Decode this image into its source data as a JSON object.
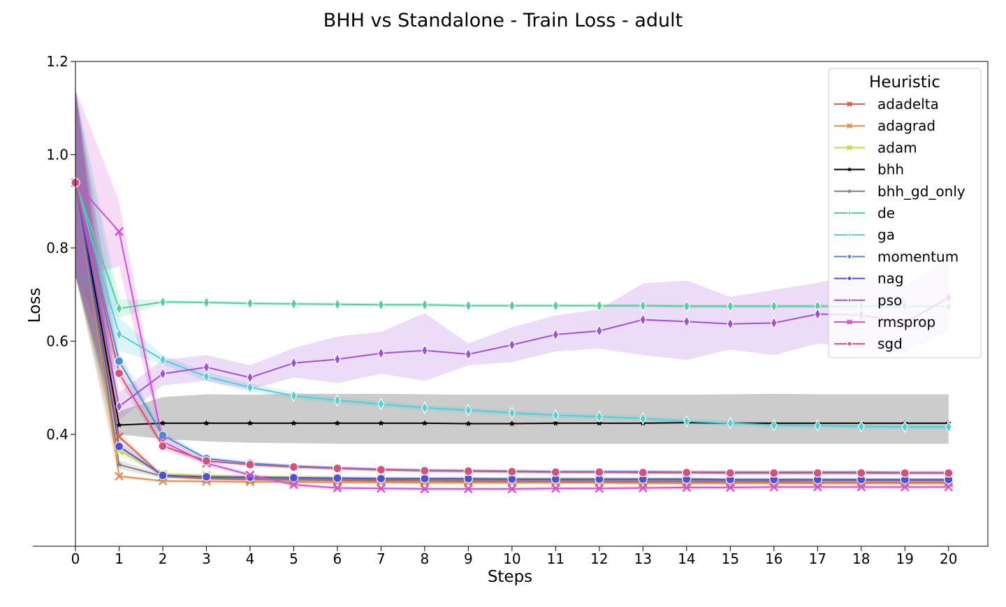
{
  "chart_data": {
    "type": "line",
    "title": "BHH vs Standalone - Train Loss - adult",
    "xlabel": "Steps",
    "ylabel": "Loss",
    "x": [
      0,
      1,
      2,
      3,
      4,
      5,
      6,
      7,
      8,
      9,
      10,
      11,
      12,
      13,
      14,
      15,
      16,
      17,
      18,
      19,
      20
    ],
    "x_ticks": [
      "0",
      "1",
      "2",
      "3",
      "4",
      "5",
      "6",
      "7",
      "8",
      "9",
      "10",
      "11",
      "12",
      "13",
      "14",
      "15",
      "16",
      "17",
      "18",
      "19",
      "20"
    ],
    "y_ticks": [
      "0.4",
      "0.6",
      "0.8",
      "1.0",
      "1.2"
    ],
    "y_tick_values": [
      0.4,
      0.6,
      0.8,
      1.0,
      1.2
    ],
    "xlim": [
      0,
      20.9
    ],
    "ylim": [
      0.16,
      1.2
    ],
    "grid": false,
    "legend": {
      "title": "Heuristic",
      "placement": "top-right"
    },
    "series": [
      {
        "name": "adadelta",
        "color": "#d65f4f",
        "marker": "x",
        "values": [
          0.94,
          0.395,
          0.31,
          0.305,
          0.303,
          0.302,
          0.301,
          0.3,
          0.3,
          0.299,
          0.299,
          0.299,
          0.298,
          0.298,
          0.298,
          0.298,
          0.298,
          0.297,
          0.297,
          0.297,
          0.297
        ],
        "band": {
          "lower": [
            0.74,
            0.385,
            0.306,
            0.301,
            0.299,
            0.298,
            0.297,
            0.296,
            0.296,
            0.295,
            0.295,
            0.295,
            0.294,
            0.294,
            0.294,
            0.294,
            0.294,
            0.293,
            0.293,
            0.293,
            0.293
          ],
          "upper": [
            1.14,
            0.405,
            0.314,
            0.309,
            0.307,
            0.306,
            0.305,
            0.304,
            0.304,
            0.303,
            0.303,
            0.303,
            0.302,
            0.302,
            0.302,
            0.302,
            0.302,
            0.301,
            0.301,
            0.301,
            0.301
          ]
        }
      },
      {
        "name": "adagrad",
        "color": "#e09050",
        "marker": "x",
        "values": [
          0.94,
          0.31,
          0.3,
          0.299,
          0.298,
          0.298,
          0.297,
          0.297,
          0.296,
          0.296,
          0.296,
          0.296,
          0.296,
          0.295,
          0.295,
          0.295,
          0.295,
          0.295,
          0.295,
          0.295,
          0.295
        ],
        "band": {
          "lower": [
            0.74,
            0.306,
            0.297,
            0.296,
            0.295,
            0.295,
            0.294,
            0.294,
            0.293,
            0.293,
            0.293,
            0.293,
            0.293,
            0.292,
            0.292,
            0.292,
            0.292,
            0.292,
            0.292,
            0.292,
            0.292
          ],
          "upper": [
            1.14,
            0.314,
            0.303,
            0.302,
            0.301,
            0.301,
            0.3,
            0.3,
            0.299,
            0.299,
            0.299,
            0.299,
            0.299,
            0.298,
            0.298,
            0.298,
            0.298,
            0.298,
            0.298,
            0.298,
            0.298
          ]
        }
      },
      {
        "name": "adam",
        "color": "#c8d84a",
        "marker": "x",
        "values": [
          0.94,
          0.365,
          0.315,
          0.312,
          0.31,
          0.308,
          0.307,
          0.306,
          0.305,
          0.305,
          0.304,
          0.304,
          0.304,
          0.303,
          0.303,
          0.303,
          0.303,
          0.302,
          0.302,
          0.302,
          0.302
        ],
        "band": {
          "lower": [
            0.74,
            0.355,
            0.311,
            0.308,
            0.306,
            0.304,
            0.303,
            0.302,
            0.301,
            0.301,
            0.3,
            0.3,
            0.3,
            0.299,
            0.299,
            0.299,
            0.299,
            0.298,
            0.298,
            0.298,
            0.298
          ],
          "upper": [
            1.14,
            0.375,
            0.319,
            0.316,
            0.314,
            0.312,
            0.311,
            0.31,
            0.309,
            0.309,
            0.308,
            0.308,
            0.308,
            0.307,
            0.307,
            0.307,
            0.307,
            0.306,
            0.306,
            0.306,
            0.306
          ]
        }
      },
      {
        "name": "bhh",
        "color": "#000000",
        "marker": "star",
        "values": [
          0.94,
          0.42,
          0.424,
          0.424,
          0.424,
          0.424,
          0.424,
          0.424,
          0.424,
          0.423,
          0.423,
          0.424,
          0.424,
          0.424,
          0.425,
          0.424,
          0.424,
          0.424,
          0.424,
          0.424,
          0.424
        ],
        "band": {
          "lower": [
            0.74,
            0.4,
            0.39,
            0.385,
            0.382,
            0.381,
            0.38,
            0.38,
            0.38,
            0.38,
            0.38,
            0.38,
            0.38,
            0.38,
            0.38,
            0.38,
            0.38,
            0.38,
            0.38,
            0.38,
            0.38
          ],
          "upper": [
            1.14,
            0.45,
            0.48,
            0.486,
            0.485,
            0.487,
            0.487,
            0.487,
            0.486,
            0.485,
            0.485,
            0.485,
            0.485,
            0.485,
            0.485,
            0.486,
            0.487,
            0.486,
            0.486,
            0.486,
            0.486
          ]
        }
      },
      {
        "name": "bhh_gd_only",
        "color": "#808080",
        "marker": "star",
        "values": [
          0.94,
          0.335,
          0.31,
          0.307,
          0.305,
          0.304,
          0.303,
          0.303,
          0.302,
          0.302,
          0.302,
          0.302,
          0.301,
          0.301,
          0.301,
          0.301,
          0.301,
          0.301,
          0.301,
          0.301,
          0.301
        ],
        "band": {
          "lower": [
            0.74,
            0.325,
            0.306,
            0.303,
            0.301,
            0.3,
            0.299,
            0.299,
            0.298,
            0.298,
            0.298,
            0.298,
            0.297,
            0.297,
            0.297,
            0.297,
            0.297,
            0.297,
            0.297,
            0.297,
            0.297
          ],
          "upper": [
            1.14,
            0.345,
            0.314,
            0.311,
            0.309,
            0.308,
            0.307,
            0.307,
            0.306,
            0.306,
            0.306,
            0.306,
            0.305,
            0.305,
            0.305,
            0.305,
            0.305,
            0.305,
            0.305,
            0.305,
            0.305
          ]
        }
      },
      {
        "name": "de",
        "color": "#4fd19b",
        "marker": "diamond",
        "values": [
          0.94,
          0.67,
          0.684,
          0.683,
          0.681,
          0.68,
          0.679,
          0.678,
          0.678,
          0.676,
          0.676,
          0.676,
          0.676,
          0.676,
          0.675,
          0.675,
          0.675,
          0.675,
          0.675,
          0.675,
          0.675
        ],
        "band": {
          "lower": [
            0.74,
            0.65,
            0.68,
            0.679,
            0.677,
            0.676,
            0.675,
            0.674,
            0.674,
            0.672,
            0.672,
            0.672,
            0.672,
            0.672,
            0.671,
            0.671,
            0.671,
            0.671,
            0.671,
            0.671,
            0.671
          ],
          "upper": [
            1.14,
            0.69,
            0.688,
            0.687,
            0.685,
            0.684,
            0.683,
            0.682,
            0.682,
            0.68,
            0.68,
            0.68,
            0.68,
            0.68,
            0.679,
            0.679,
            0.679,
            0.679,
            0.679,
            0.679,
            0.679
          ]
        }
      },
      {
        "name": "ga",
        "color": "#4fcfd6",
        "marker": "diamond",
        "values": [
          0.94,
          0.615,
          0.56,
          0.524,
          0.501,
          0.483,
          0.473,
          0.465,
          0.457,
          0.452,
          0.446,
          0.441,
          0.438,
          0.434,
          0.428,
          0.424,
          0.42,
          0.419,
          0.417,
          0.416,
          0.416
        ],
        "band": {
          "lower": [
            0.74,
            0.58,
            0.55,
            0.514,
            0.492,
            0.476,
            0.466,
            0.458,
            0.451,
            0.446,
            0.44,
            0.435,
            0.432,
            0.428,
            0.422,
            0.418,
            0.414,
            0.413,
            0.411,
            0.41,
            0.41
          ],
          "upper": [
            1.14,
            0.65,
            0.57,
            0.534,
            0.51,
            0.49,
            0.48,
            0.472,
            0.463,
            0.458,
            0.452,
            0.447,
            0.444,
            0.44,
            0.434,
            0.43,
            0.426,
            0.425,
            0.423,
            0.422,
            0.422
          ]
        }
      },
      {
        "name": "momentum",
        "color": "#4a8cd6",
        "marker": "circle",
        "values": [
          0.94,
          0.557,
          0.398,
          0.348,
          0.338,
          0.332,
          0.328,
          0.325,
          0.323,
          0.322,
          0.321,
          0.32,
          0.32,
          0.32,
          0.319,
          0.319,
          0.319,
          0.319,
          0.319,
          0.318,
          0.318
        ],
        "band": {
          "lower": [
            0.74,
            0.54,
            0.39,
            0.344,
            0.334,
            0.328,
            0.324,
            0.321,
            0.319,
            0.318,
            0.317,
            0.316,
            0.316,
            0.316,
            0.315,
            0.315,
            0.315,
            0.315,
            0.315,
            0.314,
            0.314
          ],
          "upper": [
            1.14,
            0.575,
            0.406,
            0.352,
            0.342,
            0.336,
            0.332,
            0.329,
            0.327,
            0.326,
            0.325,
            0.324,
            0.324,
            0.324,
            0.323,
            0.323,
            0.323,
            0.323,
            0.323,
            0.322,
            0.322
          ]
        }
      },
      {
        "name": "nag",
        "color": "#5050d6",
        "marker": "circle",
        "values": [
          0.94,
          0.374,
          0.312,
          0.309,
          0.308,
          0.307,
          0.306,
          0.305,
          0.305,
          0.305,
          0.304,
          0.304,
          0.304,
          0.304,
          0.304,
          0.303,
          0.303,
          0.303,
          0.303,
          0.303,
          0.303
        ],
        "band": {
          "lower": [
            0.74,
            0.364,
            0.308,
            0.305,
            0.304,
            0.303,
            0.302,
            0.301,
            0.301,
            0.301,
            0.3,
            0.3,
            0.3,
            0.3,
            0.3,
            0.299,
            0.299,
            0.299,
            0.299,
            0.299,
            0.299
          ],
          "upper": [
            1.14,
            0.384,
            0.316,
            0.313,
            0.312,
            0.311,
            0.31,
            0.309,
            0.309,
            0.309,
            0.308,
            0.308,
            0.308,
            0.308,
            0.308,
            0.307,
            0.307,
            0.307,
            0.307,
            0.307,
            0.307
          ]
        }
      },
      {
        "name": "pso",
        "color": "#a04fd9",
        "marker": "diamond",
        "values": [
          0.94,
          0.46,
          0.53,
          0.544,
          0.522,
          0.553,
          0.561,
          0.574,
          0.58,
          0.572,
          0.592,
          0.614,
          0.622,
          0.646,
          0.642,
          0.637,
          0.639,
          0.658,
          0.656,
          0.64,
          0.693
        ],
        "band": {
          "lower": [
            0.74,
            0.43,
            0.505,
            0.515,
            0.496,
            0.522,
            0.51,
            0.53,
            0.515,
            0.548,
            0.555,
            0.578,
            0.584,
            0.57,
            0.56,
            0.582,
            0.57,
            0.595,
            0.585,
            0.575,
            0.62
          ],
          "upper": [
            1.14,
            0.49,
            0.56,
            0.57,
            0.548,
            0.585,
            0.61,
            0.62,
            0.66,
            0.595,
            0.63,
            0.655,
            0.668,
            0.724,
            0.73,
            0.695,
            0.71,
            0.725,
            0.745,
            0.715,
            0.78
          ]
        }
      },
      {
        "name": "rmsprop",
        "color": "#d44fd6",
        "marker": "x",
        "values": [
          0.94,
          0.835,
          0.385,
          0.338,
          0.313,
          0.292,
          0.285,
          0.284,
          0.283,
          0.283,
          0.283,
          0.284,
          0.284,
          0.285,
          0.286,
          0.286,
          0.287,
          0.287,
          0.287,
          0.287,
          0.287
        ],
        "band": {
          "lower": [
            0.74,
            0.76,
            0.375,
            0.332,
            0.308,
            0.288,
            0.281,
            0.28,
            0.279,
            0.279,
            0.279,
            0.28,
            0.28,
            0.281,
            0.282,
            0.282,
            0.283,
            0.283,
            0.283,
            0.283,
            0.283
          ],
          "upper": [
            1.14,
            0.9,
            0.395,
            0.344,
            0.318,
            0.296,
            0.289,
            0.288,
            0.287,
            0.287,
            0.287,
            0.288,
            0.288,
            0.289,
            0.29,
            0.29,
            0.291,
            0.291,
            0.291,
            0.291,
            0.291
          ]
        }
      },
      {
        "name": "sgd",
        "color": "#d6507f",
        "marker": "circle",
        "values": [
          0.94,
          0.531,
          0.375,
          0.343,
          0.335,
          0.33,
          0.327,
          0.324,
          0.322,
          0.321,
          0.32,
          0.319,
          0.319,
          0.318,
          0.318,
          0.317,
          0.317,
          0.317,
          0.317,
          0.317,
          0.317
        ],
        "band": {
          "lower": [
            0.74,
            0.515,
            0.367,
            0.339,
            0.331,
            0.326,
            0.323,
            0.32,
            0.318,
            0.317,
            0.316,
            0.315,
            0.315,
            0.314,
            0.314,
            0.313,
            0.313,
            0.313,
            0.313,
            0.313,
            0.313
          ],
          "upper": [
            1.14,
            0.545,
            0.383,
            0.347,
            0.339,
            0.334,
            0.331,
            0.328,
            0.326,
            0.325,
            0.324,
            0.323,
            0.323,
            0.322,
            0.322,
            0.321,
            0.321,
            0.321,
            0.321,
            0.321,
            0.321
          ]
        }
      }
    ]
  }
}
